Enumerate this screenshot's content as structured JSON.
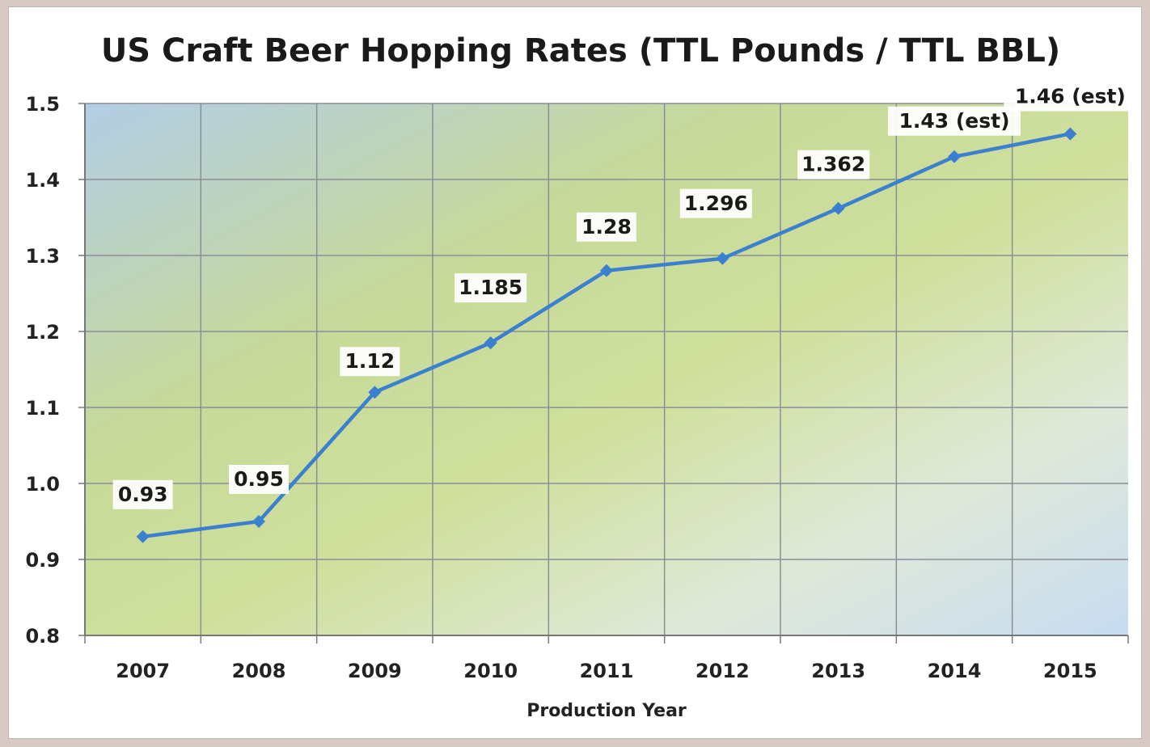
{
  "chart_data": {
    "type": "line",
    "title": "US Craft Beer Hopping Rates (TTL Pounds / TTL BBL)",
    "xlabel": "Production Year",
    "ylabel": "",
    "categories": [
      "2007",
      "2008",
      "2009",
      "2010",
      "2011",
      "2012",
      "2013",
      "2014",
      "2015"
    ],
    "values": [
      0.93,
      0.95,
      1.12,
      1.185,
      1.28,
      1.296,
      1.362,
      1.43,
      1.46
    ],
    "data_labels": [
      "0.93",
      "0.95",
      "1.12",
      "1.185",
      "1.28",
      "1.296",
      "1.362",
      "1.43 (est)",
      "1.46 (est)"
    ],
    "ylim": [
      0.8,
      1.5
    ],
    "yticks": [
      "0.8",
      "0.9",
      "1.0",
      "1.1",
      "1.2",
      "1.3",
      "1.4",
      "1.5"
    ],
    "grid": true,
    "legend": "none",
    "series_color": "#3a7fd0",
    "grid_color": "#8a8f96"
  }
}
